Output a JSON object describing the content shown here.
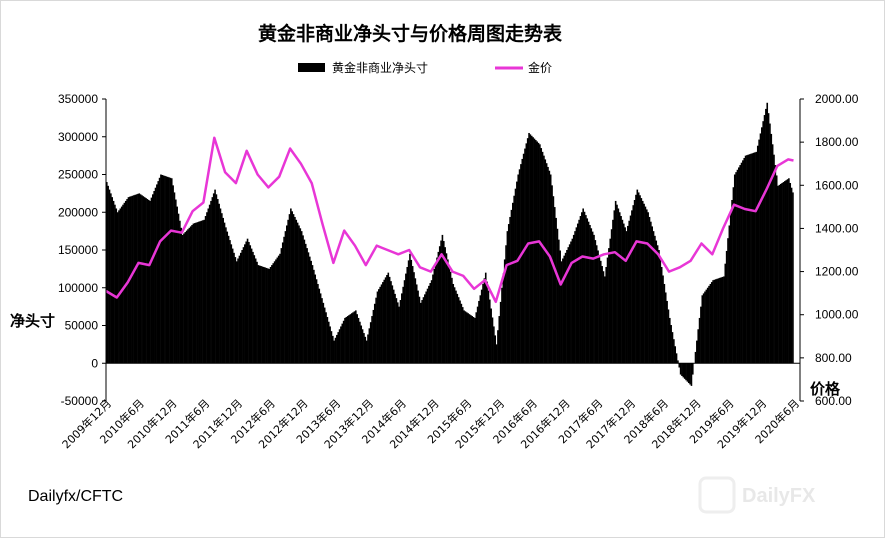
{
  "chart_data": {
    "type": "bar+line",
    "title": "黄金非商业净头寸与价格周图走势表",
    "legend": {
      "placement": "top",
      "items": [
        "黄金非商业净头寸",
        "金价"
      ]
    },
    "left_axis": {
      "label": "净头寸",
      "ylim": [
        -50000,
        350000
      ],
      "ticks": [
        "350000",
        "300000",
        "250000",
        "200000",
        "150000",
        "100000",
        "50000",
        "0",
        "-50000"
      ]
    },
    "right_axis": {
      "label": "价格",
      "ylim": [
        600,
        2000
      ],
      "ticks": [
        "2000.00",
        "1800.00",
        "1600.00",
        "1400.00",
        "1200.00",
        "1000.00",
        "800.00",
        "600.00"
      ]
    },
    "x_labels": [
      "2009年12月",
      "2010年6月",
      "2010年12月",
      "2011年6月",
      "2011年12月",
      "2012年6月",
      "2012年12月",
      "2013年6月",
      "2013年12月",
      "2014年6月",
      "2014年12月",
      "2015年6月",
      "2015年12月",
      "2016年6月",
      "2016年12月",
      "2017年6月",
      "2017年12月",
      "2018年6月",
      "2018年12月",
      "2019年6月",
      "2019年12月",
      "2020年6月"
    ],
    "grid": false,
    "colors": {
      "net_position": "#000000",
      "gold_price": "#e836d6"
    },
    "series": [
      {
        "name": "黄金非商业净头寸",
        "type": "bar",
        "points": [
          [
            "2009-12",
            240000
          ],
          [
            "2010-02",
            200000
          ],
          [
            "2010-04",
            220000
          ],
          [
            "2010-06",
            225000
          ],
          [
            "2010-08",
            215000
          ],
          [
            "2010-10",
            250000
          ],
          [
            "2010-12",
            245000
          ],
          [
            "2011-02",
            170000
          ],
          [
            "2011-04",
            185000
          ],
          [
            "2011-06",
            190000
          ],
          [
            "2011-08",
            230000
          ],
          [
            "2011-10",
            180000
          ],
          [
            "2011-12",
            135000
          ],
          [
            "2012-02",
            165000
          ],
          [
            "2012-04",
            130000
          ],
          [
            "2012-06",
            125000
          ],
          [
            "2012-08",
            145000
          ],
          [
            "2012-10",
            205000
          ],
          [
            "2012-12",
            175000
          ],
          [
            "2013-02",
            130000
          ],
          [
            "2013-04",
            80000
          ],
          [
            "2013-06",
            30000
          ],
          [
            "2013-08",
            60000
          ],
          [
            "2013-10",
            70000
          ],
          [
            "2013-12",
            30000
          ],
          [
            "2014-02",
            95000
          ],
          [
            "2014-04",
            120000
          ],
          [
            "2014-06",
            75000
          ],
          [
            "2014-08",
            145000
          ],
          [
            "2014-10",
            80000
          ],
          [
            "2014-12",
            110000
          ],
          [
            "2015-02",
            170000
          ],
          [
            "2015-04",
            105000
          ],
          [
            "2015-06",
            70000
          ],
          [
            "2015-08",
            60000
          ],
          [
            "2015-10",
            120000
          ],
          [
            "2015-12",
            25000
          ],
          [
            "2016-02",
            175000
          ],
          [
            "2016-04",
            250000
          ],
          [
            "2016-06",
            305000
          ],
          [
            "2016-08",
            290000
          ],
          [
            "2016-10",
            250000
          ],
          [
            "2016-12",
            135000
          ],
          [
            "2017-02",
            165000
          ],
          [
            "2017-04",
            205000
          ],
          [
            "2017-06",
            170000
          ],
          [
            "2017-08",
            115000
          ],
          [
            "2017-10",
            215000
          ],
          [
            "2017-12",
            175000
          ],
          [
            "2018-02",
            230000
          ],
          [
            "2018-04",
            200000
          ],
          [
            "2018-06",
            150000
          ],
          [
            "2018-08",
            60000
          ],
          [
            "2018-10",
            -15000
          ],
          [
            "2018-12",
            -30000
          ],
          [
            "2019-02",
            90000
          ],
          [
            "2019-04",
            110000
          ],
          [
            "2019-06",
            115000
          ],
          [
            "2019-08",
            250000
          ],
          [
            "2019-10",
            275000
          ],
          [
            "2019-12",
            280000
          ],
          [
            "2020-02",
            345000
          ],
          [
            "2020-04",
            235000
          ],
          [
            "2020-06",
            245000
          ],
          [
            "2020-07",
            220000
          ]
        ]
      },
      {
        "name": "金价",
        "type": "line",
        "axis": "right",
        "points": [
          [
            "2009-12",
            1110
          ],
          [
            "2010-02",
            1080
          ],
          [
            "2010-04",
            1150
          ],
          [
            "2010-06",
            1240
          ],
          [
            "2010-08",
            1230
          ],
          [
            "2010-10",
            1340
          ],
          [
            "2010-12",
            1390
          ],
          [
            "2011-02",
            1380
          ],
          [
            "2011-04",
            1480
          ],
          [
            "2011-06",
            1520
          ],
          [
            "2011-08",
            1820
          ],
          [
            "2011-10",
            1660
          ],
          [
            "2011-12",
            1610
          ],
          [
            "2012-02",
            1760
          ],
          [
            "2012-04",
            1650
          ],
          [
            "2012-06",
            1590
          ],
          [
            "2012-08",
            1640
          ],
          [
            "2012-10",
            1770
          ],
          [
            "2012-12",
            1700
          ],
          [
            "2013-02",
            1610
          ],
          [
            "2013-04",
            1420
          ],
          [
            "2013-06",
            1240
          ],
          [
            "2013-08",
            1390
          ],
          [
            "2013-10",
            1320
          ],
          [
            "2013-12",
            1230
          ],
          [
            "2014-02",
            1320
          ],
          [
            "2014-04",
            1300
          ],
          [
            "2014-06",
            1280
          ],
          [
            "2014-08",
            1300
          ],
          [
            "2014-10",
            1220
          ],
          [
            "2014-12",
            1200
          ],
          [
            "2015-02",
            1280
          ],
          [
            "2015-04",
            1200
          ],
          [
            "2015-06",
            1180
          ],
          [
            "2015-08",
            1120
          ],
          [
            "2015-10",
            1160
          ],
          [
            "2015-12",
            1060
          ],
          [
            "2016-02",
            1230
          ],
          [
            "2016-04",
            1250
          ],
          [
            "2016-06",
            1330
          ],
          [
            "2016-08",
            1340
          ],
          [
            "2016-10",
            1270
          ],
          [
            "2016-12",
            1140
          ],
          [
            "2017-02",
            1240
          ],
          [
            "2017-04",
            1270
          ],
          [
            "2017-06",
            1260
          ],
          [
            "2017-08",
            1280
          ],
          [
            "2017-10",
            1290
          ],
          [
            "2017-12",
            1250
          ],
          [
            "2018-02",
            1340
          ],
          [
            "2018-04",
            1330
          ],
          [
            "2018-06",
            1280
          ],
          [
            "2018-08",
            1200
          ],
          [
            "2018-10",
            1220
          ],
          [
            "2018-12",
            1250
          ],
          [
            "2019-02",
            1330
          ],
          [
            "2019-04",
            1280
          ],
          [
            "2019-06",
            1400
          ],
          [
            "2019-08",
            1510
          ],
          [
            "2019-10",
            1490
          ],
          [
            "2019-12",
            1480
          ],
          [
            "2020-02",
            1580
          ],
          [
            "2020-04",
            1690
          ],
          [
            "2020-06",
            1720
          ],
          [
            "2020-07",
            1715
          ]
        ]
      }
    ]
  },
  "source_label": "Dailyfx/CFTC",
  "watermark": "DailyFX"
}
